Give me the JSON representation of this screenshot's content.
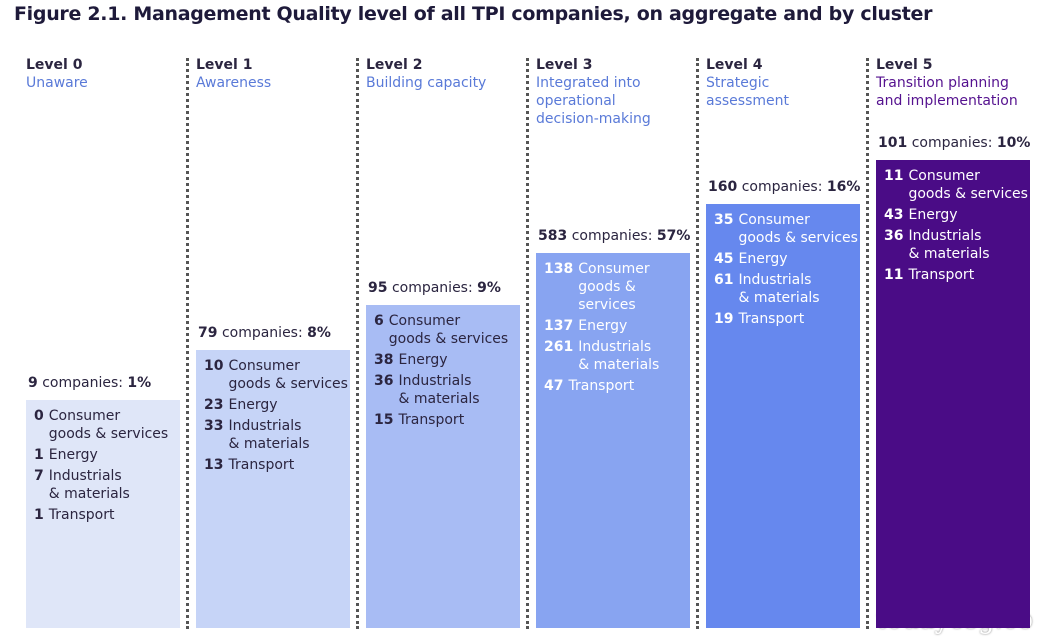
{
  "header": {
    "title": "Figure 2.1. Management Quality level of all TPI companies, on aggregate and by cluster"
  },
  "levels": [
    {
      "level": "Level 0",
      "name": [
        "Unaware"
      ],
      "count": "9",
      "unit": "companies:",
      "percent": "1%",
      "clusters": [
        {
          "number": "0",
          "label": [
            "Consumer",
            "goods & services"
          ]
        },
        {
          "number": "1",
          "label": [
            "Energy"
          ]
        },
        {
          "number": "7",
          "label": [
            "Industrials",
            "& materials"
          ]
        },
        {
          "number": "1",
          "label": [
            "Transport"
          ]
        }
      ]
    },
    {
      "level": "Level 1",
      "name": [
        "Awareness"
      ],
      "count": "79",
      "unit": "companies:",
      "percent": "8%",
      "clusters": [
        {
          "number": "10",
          "label": [
            "Consumer",
            "goods & services"
          ]
        },
        {
          "number": "23",
          "label": [
            "Energy"
          ]
        },
        {
          "number": "33",
          "label": [
            "Industrials",
            "& materials"
          ]
        },
        {
          "number": "13",
          "label": [
            "Transport"
          ]
        }
      ]
    },
    {
      "level": "Level 2",
      "name": [
        "Building capacity"
      ],
      "count": "95",
      "unit": "companies:",
      "percent": "9%",
      "clusters": [
        {
          "number": "6",
          "label": [
            "Consumer",
            "goods & services"
          ]
        },
        {
          "number": "38",
          "label": [
            "Energy"
          ]
        },
        {
          "number": "36",
          "label": [
            "Industrials",
            "& materials"
          ]
        },
        {
          "number": "15",
          "label": [
            "Transport"
          ]
        }
      ]
    },
    {
      "level": "Level 3",
      "name": [
        "Integrated into",
        "operational",
        "decision-making"
      ],
      "count": "583",
      "unit": "companies:",
      "percent": "57%",
      "clusters": [
        {
          "number": "138",
          "label": [
            "Consumer",
            "goods & services"
          ]
        },
        {
          "number": "137",
          "label": [
            "Energy"
          ]
        },
        {
          "number": "261",
          "label": [
            "Industrials",
            "& materials"
          ]
        },
        {
          "number": "47",
          "label": [
            "Transport"
          ]
        }
      ]
    },
    {
      "level": "Level 4",
      "name": [
        "Strategic",
        "assessment"
      ],
      "count": "160",
      "unit": "companies:",
      "percent": "16%",
      "clusters": [
        {
          "number": "35",
          "label": [
            "Consumer",
            "goods & services"
          ]
        },
        {
          "number": "45",
          "label": [
            "Energy"
          ]
        },
        {
          "number": "61",
          "label": [
            "Industrials",
            "& materials"
          ]
        },
        {
          "number": "19",
          "label": [
            "Transport"
          ]
        }
      ]
    },
    {
      "level": "Level 5",
      "name": [
        "Transition planning",
        "and implementation"
      ],
      "count": "101",
      "unit": "companies:",
      "percent": "10%",
      "clusters": [
        {
          "number": "11",
          "label": [
            "Consumer",
            "goods & services"
          ]
        },
        {
          "number": "43",
          "label": [
            "Energy"
          ]
        },
        {
          "number": "36",
          "label": [
            "Industrials",
            "& materials"
          ]
        },
        {
          "number": "11",
          "label": [
            "Transport"
          ]
        }
      ]
    }
  ],
  "watermark": "todayesg.co"
}
